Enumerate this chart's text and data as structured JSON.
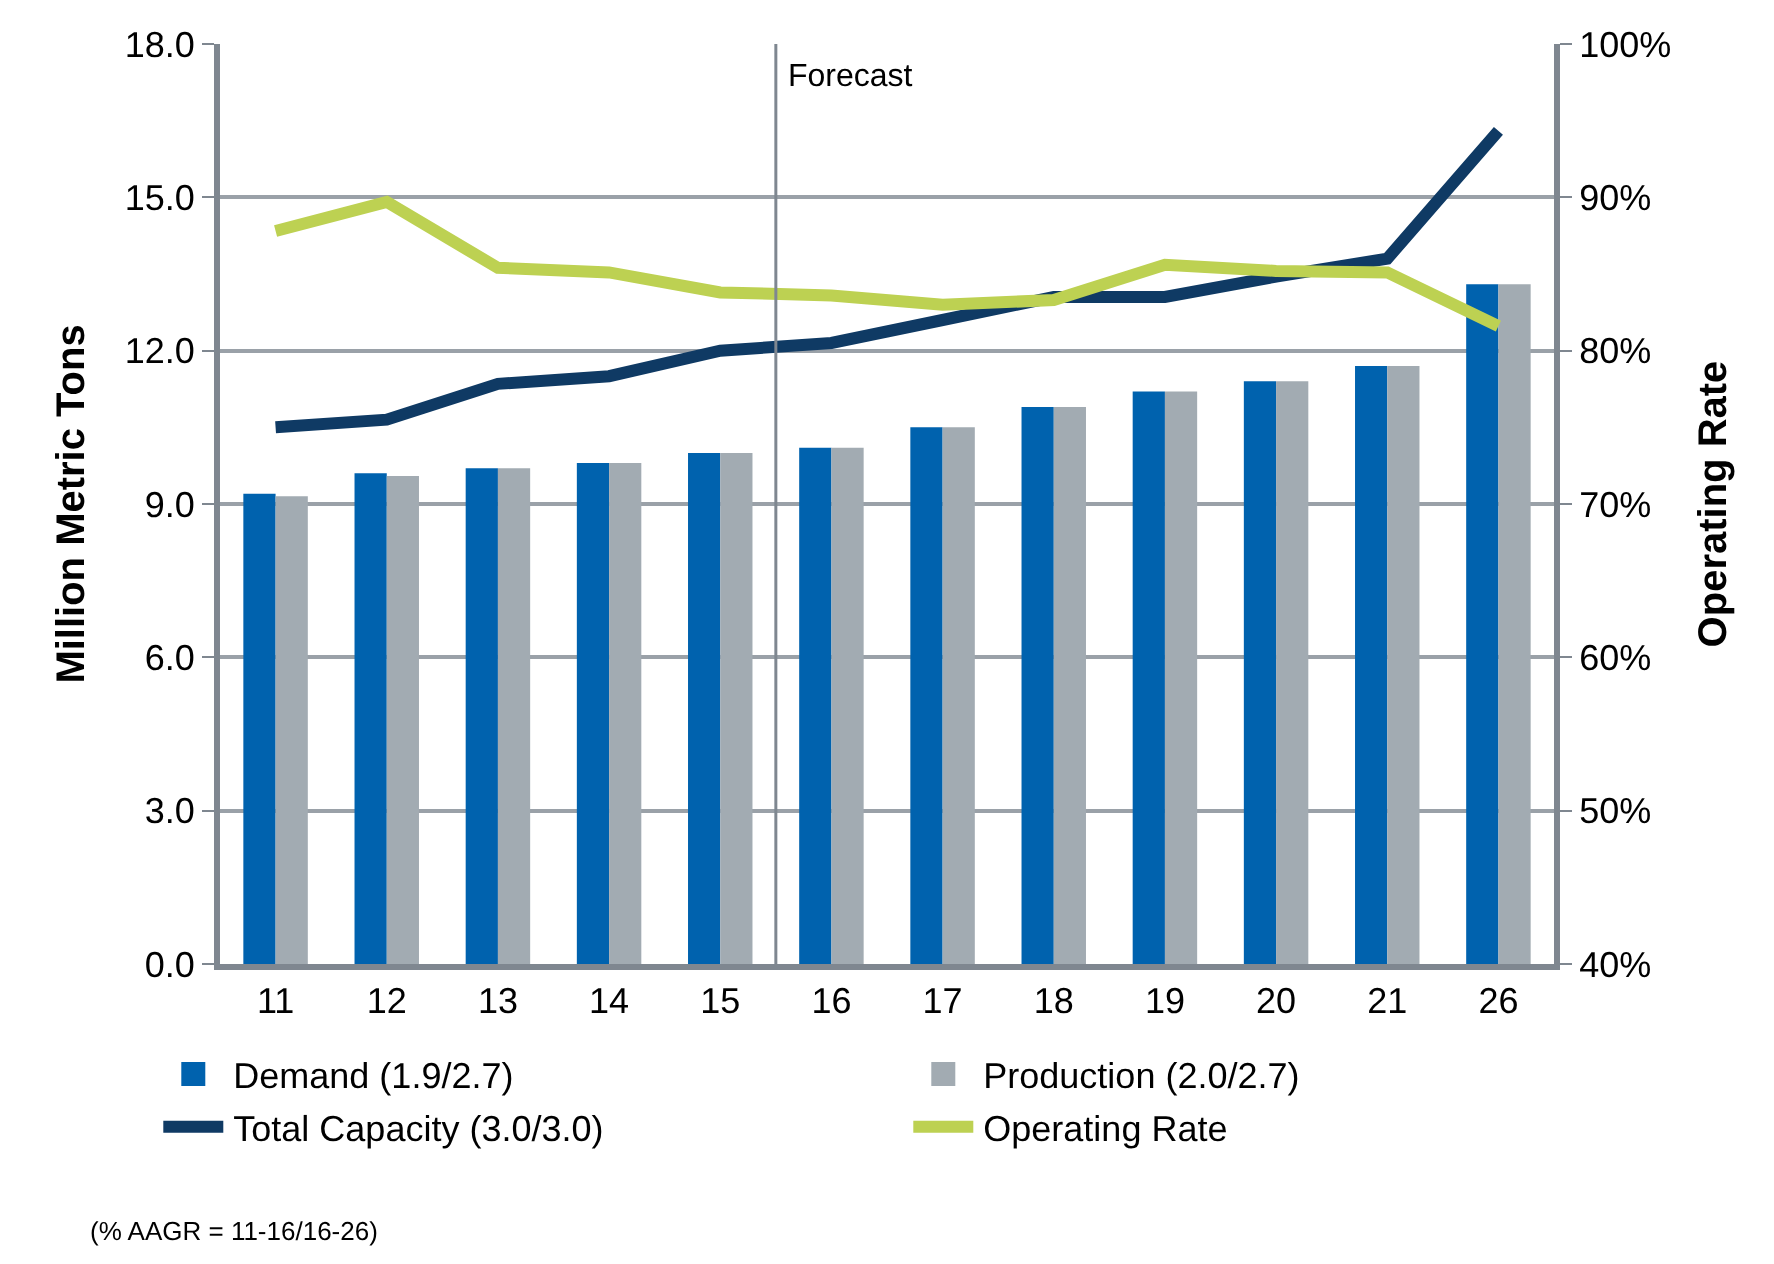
{
  "chart_data": {
    "type": "bar",
    "ylabel": "Million Metric Tons",
    "y2label": "Operating Rate",
    "categories": [
      "11",
      "12",
      "13",
      "14",
      "15",
      "16",
      "17",
      "18",
      "19",
      "20",
      "21",
      "26"
    ],
    "series": [
      {
        "name": "Demand (1.9/2.7)",
        "color": "#0062ae",
        "values": [
          9.2,
          9.6,
          9.7,
          9.8,
          10.0,
          10.1,
          10.5,
          10.9,
          11.2,
          11.4,
          11.7,
          13.3
        ]
      },
      {
        "name": "Production (2.0/2.7)",
        "color": "#a2abb2",
        "values": [
          9.15,
          9.55,
          9.7,
          9.8,
          10.0,
          10.1,
          10.5,
          10.9,
          11.2,
          11.4,
          11.7,
          13.3
        ]
      },
      {
        "name": "Total Capacity (3.0/3.0)",
        "type": "line",
        "color": "#0f3a64",
        "values": [
          10.5,
          10.65,
          11.35,
          11.5,
          12.0,
          12.15,
          12.6,
          13.05,
          13.05,
          13.45,
          13.8,
          16.3
        ]
      },
      {
        "name": "Operating Rate",
        "type": "line",
        "axis": "y2",
        "color": "#bdd152",
        "values": [
          87.8,
          89.7,
          85.4,
          85.1,
          83.8,
          83.6,
          83.0,
          83.3,
          85.6,
          85.2,
          85.1,
          81.6
        ]
      }
    ],
    "ylim": [
      0,
      18
    ],
    "yticks": [
      {
        "value": 0,
        "label": "0.0"
      },
      {
        "value": 3,
        "label": "3.0"
      },
      {
        "value": 6,
        "label": "6.0"
      },
      {
        "value": 9,
        "label": "9.0"
      },
      {
        "value": 12,
        "label": "12.0"
      },
      {
        "value": 15,
        "label": "15.0"
      },
      {
        "value": 18,
        "label": "18.0"
      }
    ],
    "y2lim": [
      40,
      100
    ],
    "y2ticks": [
      {
        "value": 40,
        "label": "40%"
      },
      {
        "value": 50,
        "label": "50%"
      },
      {
        "value": 60,
        "label": "60%"
      },
      {
        "value": 70,
        "label": "70%"
      },
      {
        "value": 80,
        "label": "80%"
      },
      {
        "value": 90,
        "label": "90%"
      },
      {
        "value": 100,
        "label": "100%"
      }
    ],
    "ref_lines": [
      {
        "axis": "x",
        "value": "16",
        "label": "Forecast",
        "color": "#7f8790"
      }
    ],
    "annotations": [
      "(% AAGR = 11-16/16-26)"
    ],
    "grid": "y",
    "legend": "bottom",
    "marker": "none",
    "line_style": "solid"
  }
}
